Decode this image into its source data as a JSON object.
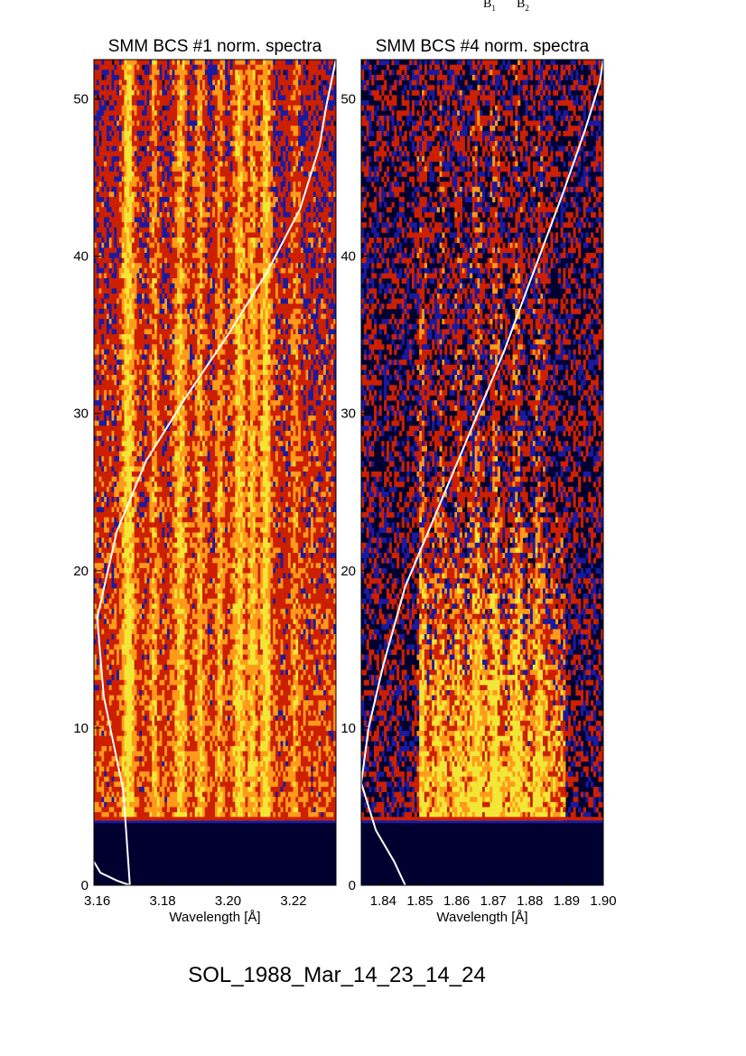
{
  "header_labels": [
    {
      "base": "B",
      "sub": "1"
    },
    {
      "base": "B",
      "sub": "2"
    }
  ],
  "figure_title": "SOL_1988_Mar_14_23_14_24",
  "colors": {
    "background": "#000030",
    "low": "#1a1aa0",
    "mid": "#cc2000",
    "high": "#ff9a1a",
    "peak": "#f2e636",
    "curve": "#ffffff"
  },
  "chart_data": [
    {
      "type": "heatmap",
      "title": "SMM BCS #1 norm. spectra",
      "xlabel": "Wavelength [Å]",
      "ylabel": "",
      "xlim": [
        3.159,
        3.233
      ],
      "ylim": [
        0,
        52.5
      ],
      "x_ticks": [
        3.16,
        3.18,
        3.2,
        3.22
      ],
      "x_tick_labels": [
        "3.16",
        "3.18",
        "3.20",
        "3.22"
      ],
      "y_ticks": [
        0,
        10,
        20,
        30,
        40,
        50
      ],
      "y_tick_labels": [
        "0",
        "10",
        "20",
        "30",
        "40",
        "50"
      ],
      "data_start_y": 4,
      "emission_lines": [
        {
          "x": 3.1695,
          "strength": 1.0,
          "width": 0.0018
        },
        {
          "x": 3.1775,
          "strength": 0.55,
          "width": 0.0012
        },
        {
          "x": 3.1855,
          "strength": 0.75,
          "width": 0.0018
        },
        {
          "x": 3.1915,
          "strength": 0.6,
          "width": 0.0015
        },
        {
          "x": 3.1975,
          "strength": 0.55,
          "width": 0.0012
        },
        {
          "x": 3.2035,
          "strength": 0.8,
          "width": 0.0018
        },
        {
          "x": 3.2075,
          "strength": 0.7,
          "width": 0.0015
        },
        {
          "x": 3.2115,
          "strength": 0.9,
          "width": 0.0016
        },
        {
          "x": 3.2205,
          "strength": 0.45,
          "width": 0.0012
        }
      ],
      "overlay_curve": {
        "x": [
          3.159,
          3.161,
          3.166,
          3.17,
          3.168,
          3.162,
          3.16,
          3.166,
          3.175,
          3.187,
          3.2,
          3.212,
          3.222,
          3.228,
          3.23,
          3.233
        ],
        "y": [
          1.5,
          0.8,
          0.3,
          0.0,
          6.0,
          12.0,
          17.0,
          22.5,
          27.0,
          31.0,
          35.0,
          39.0,
          43.0,
          47.0,
          49.5,
          52.5
        ]
      }
    },
    {
      "type": "heatmap",
      "title": "SMM BCS #4 norm. spectra",
      "xlabel": "Wavelength [Å]",
      "ylabel": "",
      "xlim": [
        1.834,
        1.9
      ],
      "ylim": [
        0,
        52.5
      ],
      "x_ticks": [
        1.84,
        1.85,
        1.86,
        1.87,
        1.88,
        1.89,
        1.9
      ],
      "x_tick_labels": [
        "1.84",
        "1.85",
        "1.86",
        "1.87",
        "1.88",
        "1.89",
        "1.90"
      ],
      "y_ticks": [
        0,
        10,
        20,
        30,
        40,
        50
      ],
      "y_tick_labels": [
        "0",
        "10",
        "20",
        "30",
        "40",
        "50"
      ],
      "data_start_y": 4,
      "band_range": [
        1.8495,
        1.8895
      ],
      "emission_lines": [
        {
          "x": 1.8505,
          "strength": 0.6,
          "width": 0.0012
        },
        {
          "x": 1.8555,
          "strength": 0.45,
          "width": 0.0015
        },
        {
          "x": 1.8605,
          "strength": 0.5,
          "width": 0.0015
        },
        {
          "x": 1.8655,
          "strength": 0.7,
          "width": 0.0018
        },
        {
          "x": 1.8705,
          "strength": 0.75,
          "width": 0.0015
        },
        {
          "x": 1.8765,
          "strength": 0.65,
          "width": 0.0015
        },
        {
          "x": 1.8825,
          "strength": 0.6,
          "width": 0.0015
        }
      ],
      "overlay_curve": {
        "x": [
          1.846,
          1.843,
          1.838,
          1.834,
          1.836,
          1.84,
          1.846,
          1.855,
          1.864,
          1.873,
          1.881,
          1.889,
          1.895,
          1.897,
          1.899,
          1.9
        ],
        "y": [
          0.0,
          1.5,
          3.5,
          6.5,
          10.0,
          14.0,
          19.0,
          24.0,
          29.0,
          34.0,
          39.0,
          44.0,
          48.0,
          49.5,
          51.0,
          52.5
        ]
      }
    }
  ]
}
